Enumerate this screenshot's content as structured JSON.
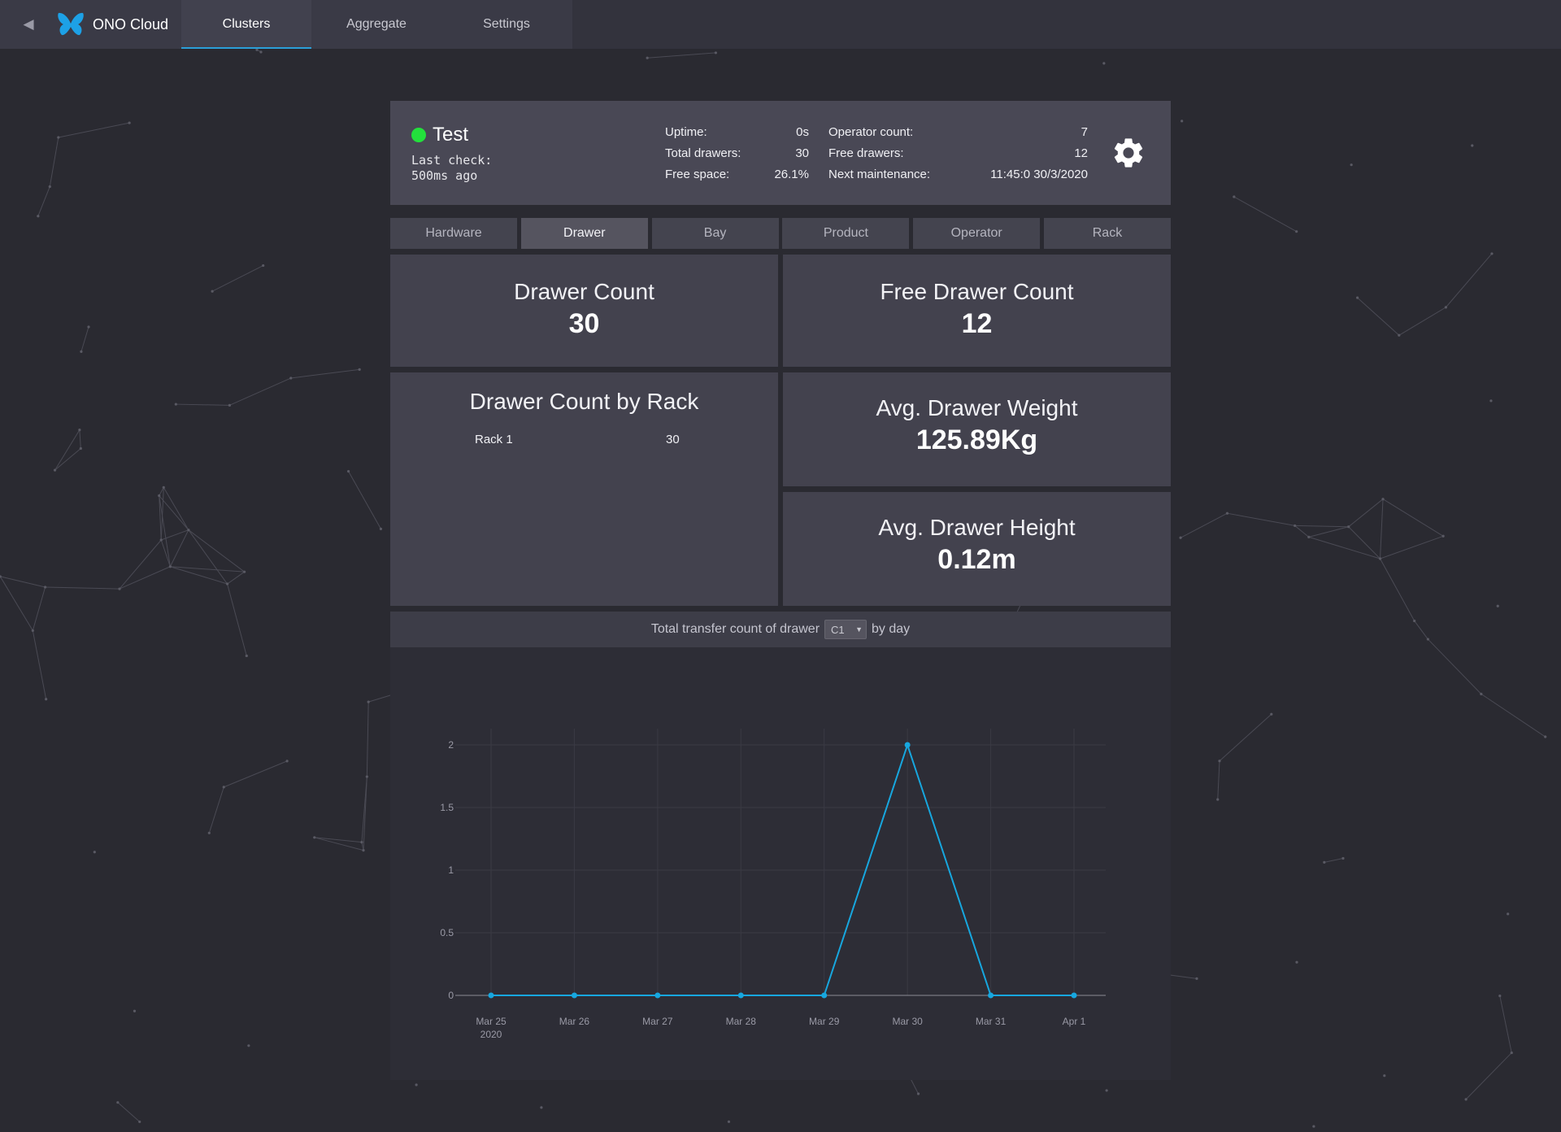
{
  "nav": {
    "back_glyph": "◀",
    "brand": "ONO Cloud",
    "tabs": [
      {
        "label": "Clusters",
        "active": true
      },
      {
        "label": "Aggregate",
        "active": false
      },
      {
        "label": "Settings",
        "active": false
      }
    ]
  },
  "status": {
    "name": "Test",
    "indicator_color": "#23e03c",
    "last_check": "Last check: 500ms ago",
    "stats_left": [
      {
        "label": "Uptime:",
        "value": "0s"
      },
      {
        "label": "Total drawers:",
        "value": "30"
      },
      {
        "label": "Free space:",
        "value": "26.1%"
      }
    ],
    "stats_right": [
      {
        "label": "Operator count:",
        "value": "7"
      },
      {
        "label": "Free drawers:",
        "value": "12"
      },
      {
        "label": "Next maintenance:",
        "value": "11:45:0 30/3/2020"
      }
    ]
  },
  "tabs": [
    {
      "label": "Hardware",
      "active": false
    },
    {
      "label": "Drawer",
      "active": true
    },
    {
      "label": "Bay",
      "active": false
    },
    {
      "label": "Product",
      "active": false
    },
    {
      "label": "Operator",
      "active": false
    },
    {
      "label": "Rack",
      "active": false
    }
  ],
  "tiles": {
    "drawer_count": {
      "title": "Drawer Count",
      "value": "30"
    },
    "free_drawer_count": {
      "title": "Free Drawer Count",
      "value": "12"
    },
    "by_rack": {
      "title": "Drawer Count by Rack",
      "rows": [
        {
          "label": "Rack 1",
          "value": "30"
        }
      ]
    },
    "avg_weight": {
      "title": "Avg. Drawer Weight",
      "value": "125.89Kg"
    },
    "avg_height": {
      "title": "Avg. Drawer Height",
      "value": "0.12m"
    }
  },
  "chart_header": {
    "prefix": "Total transfer count of drawer",
    "selected": "C1",
    "suffix": "by day"
  },
  "chart_data": {
    "type": "line",
    "x": [
      "Mar 25",
      "Mar 26",
      "Mar 27",
      "Mar 28",
      "Mar 29",
      "Mar 30",
      "Mar 31",
      "Apr 1"
    ],
    "x_sublabels": [
      "2020",
      "",
      "",
      "",
      "",
      "",
      "",
      ""
    ],
    "series": [
      {
        "values": [
          0,
          0,
          0,
          0,
          0,
          2,
          0,
          0
        ],
        "color": "#17a7df"
      }
    ],
    "y_ticks": [
      "0",
      "0.5",
      "1",
      "1.5",
      "2"
    ],
    "ylim": [
      0,
      2
    ],
    "grid": true
  }
}
